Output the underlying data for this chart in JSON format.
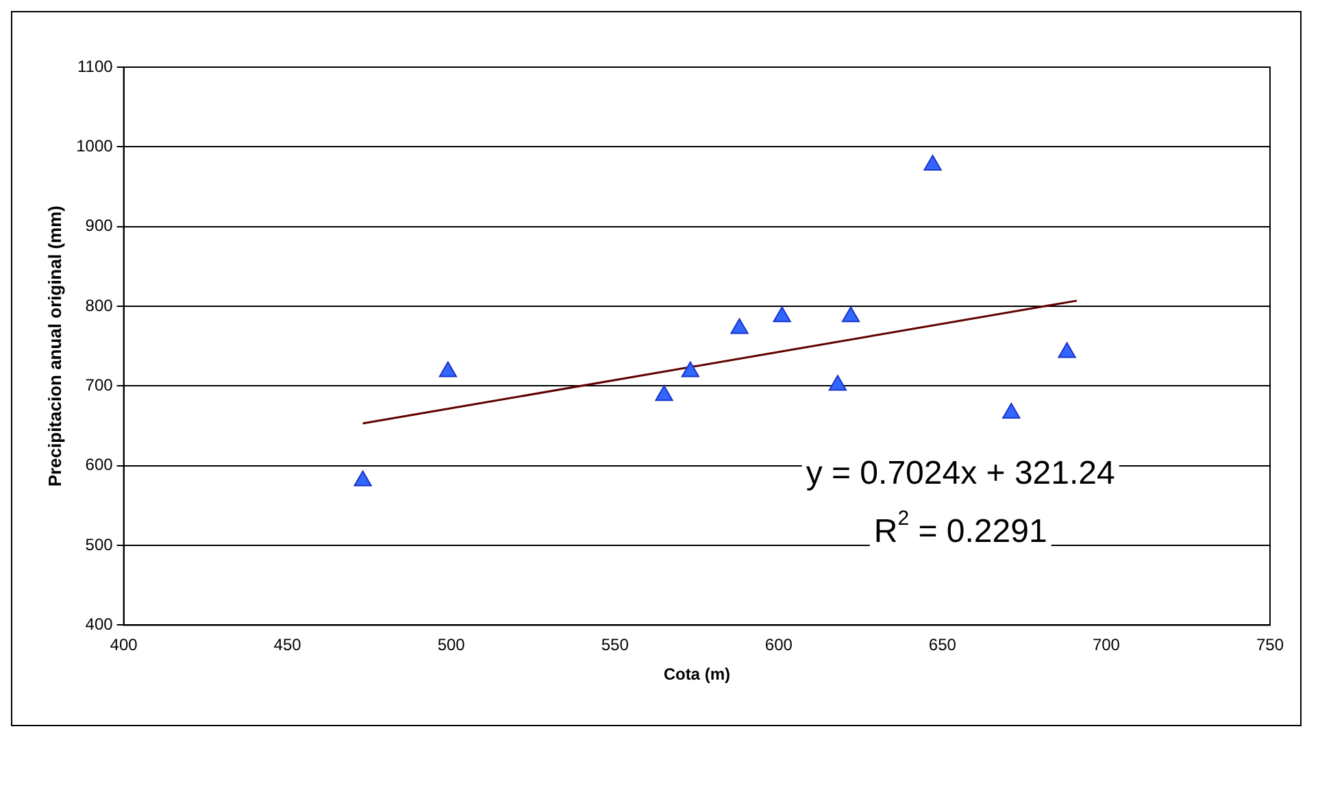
{
  "chart_data": {
    "type": "scatter",
    "xlabel": "Cota (m)",
    "ylabel": "Precipitacion anual original (mm)",
    "xlim": [
      400,
      750
    ],
    "xticks": [
      400,
      450,
      500,
      550,
      600,
      650,
      700,
      750
    ],
    "ylim": [
      400,
      1100
    ],
    "yticks": [
      400,
      500,
      600,
      700,
      800,
      900,
      1000,
      1100
    ],
    "grid": "y",
    "legend": false,
    "series": [
      {
        "type": "scatter",
        "marker": "triangle",
        "color": "#3366ff",
        "x": [
          473,
          499,
          565,
          573,
          588,
          601,
          618,
          622,
          647,
          671,
          688
        ],
        "values": [
          581,
          718,
          688,
          718,
          772,
          787,
          701,
          787,
          977,
          666,
          742
        ]
      },
      {
        "type": "line",
        "marker": "none",
        "color": "#600000",
        "x": [
          473,
          691
        ],
        "values": [
          653,
          807
        ]
      }
    ],
    "annotations": [
      "y = 0.7024x + 321.24",
      "R$^{2}$ = 0.2291"
    ]
  }
}
